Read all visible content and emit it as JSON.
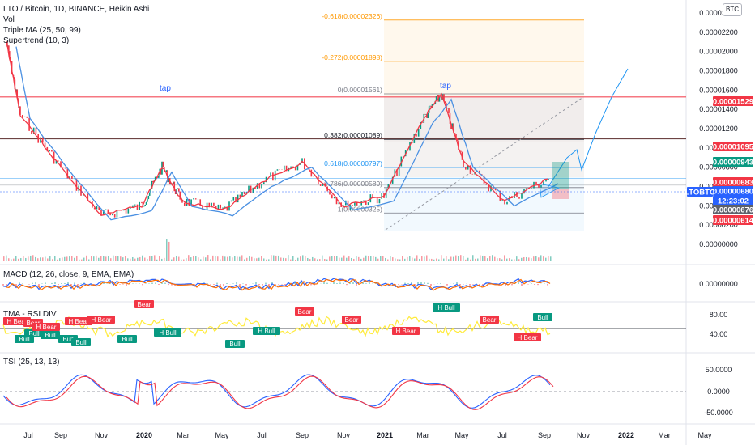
{
  "header": {
    "symbol_line": "LTO / Bitcoin, 1D, BINANCE, Heikin Ashi",
    "indicators": [
      "Vol",
      "Triple MA (25, 50, 99)",
      "Supertrend (10, 3)"
    ],
    "currency_button": "BTC"
  },
  "price_axis": {
    "ticks": [
      "0.00002400",
      "0.00002200",
      "0.00002000",
      "0.00001800",
      "0.00001600",
      "0.00001400",
      "0.00001200",
      "0.00001000",
      "0.00000800",
      "0.00000600",
      "0.00000400",
      "0.00000200",
      "0.00000000"
    ],
    "badges": [
      {
        "text": "0.00001529",
        "color": "#f23645"
      },
      {
        "text": "0.00001095",
        "color": "#f23645"
      },
      {
        "text": "0.00000943",
        "color": "#089981"
      },
      {
        "text": "0.00000683",
        "color": "#f23645"
      },
      {
        "text": "0.00000680",
        "color": "#2962ff"
      },
      {
        "text": "12:23:02",
        "color": "#2962ff"
      },
      {
        "text": "0.00000676",
        "color": "#5d606b"
      },
      {
        "text": "0.00000614",
        "color": "#f23645"
      }
    ],
    "symbol_badge": "LTOBTC"
  },
  "fib": {
    "levels": [
      {
        "label": "-0.618(0.00002326)",
        "color": "#ff9800"
      },
      {
        "label": "-0.272(0.00001898)",
        "color": "#ff9800"
      },
      {
        "label": "0(0.00001561)",
        "color": "#787b86"
      },
      {
        "label": "0.382(0.00001089)",
        "color": "#131722"
      },
      {
        "label": "0.618(0.00000797)",
        "color": "#2196f3"
      },
      {
        "label": "0.786(0.00000589)",
        "color": "#787b86"
      },
      {
        "label": "1(0.00000325)",
        "color": "#787b86"
      }
    ]
  },
  "annotations": {
    "tap1": "tap",
    "tap2": "tap"
  },
  "macd": {
    "title": "MACD (12, 26, close, 9, EMA, EMA)",
    "ticks": [
      "0.00000000"
    ]
  },
  "rsi": {
    "title": "TMA - RSI DIV",
    "ticks": [
      "80.00",
      "40.00"
    ],
    "signals": [
      {
        "t": "H Bear",
        "c": "#f23645"
      },
      {
        "t": "Bull",
        "c": "#089981"
      },
      {
        "t": "Bull",
        "c": "#089981"
      },
      {
        "t": "H Bear",
        "c": "#f23645"
      },
      {
        "t": "Bull",
        "c": "#089981"
      },
      {
        "t": "H Bear",
        "c": "#f23645"
      },
      {
        "t": "Bull",
        "c": "#089981"
      },
      {
        "t": "Bull",
        "c": "#089981"
      },
      {
        "t": "Bear",
        "c": "#f23645"
      },
      {
        "t": "H Bull",
        "c": "#089981"
      },
      {
        "t": "Bull",
        "c": "#089981"
      },
      {
        "t": "H Bull",
        "c": "#089981"
      },
      {
        "t": "Bear",
        "c": "#f23645"
      },
      {
        "t": "Bear",
        "c": "#f23645"
      },
      {
        "t": "H Bear",
        "c": "#f23645"
      },
      {
        "t": "H Bull",
        "c": "#089981"
      },
      {
        "t": "Bear",
        "c": "#f23645"
      },
      {
        "t": "H Bear",
        "c": "#f23645"
      },
      {
        "t": "Bull",
        "c": "#089981"
      },
      {
        "t": "Bear",
        "c": "#f23645"
      },
      {
        "t": "H Bear",
        "c": "#f23645"
      },
      {
        "t": "Bull",
        "c": "#089981"
      }
    ]
  },
  "tsi": {
    "title": "TSI (25, 13, 13)",
    "ticks": [
      "50.0000",
      "0.0000",
      "-50.0000"
    ]
  },
  "x_axis": [
    "Jul",
    "Sep",
    "Nov",
    "2020",
    "Mar",
    "May",
    "Jul",
    "Sep",
    "Nov",
    "2021",
    "Mar",
    "May",
    "Jul",
    "Sep",
    "Nov",
    "2022",
    "Mar",
    "May"
  ],
  "chart_data": {
    "type": "line",
    "title": "LTO / Bitcoin, 1D, BINANCE, Heikin Ashi",
    "xlabel": "",
    "ylabel": "",
    "ylim": [
      0,
      2.4e-05
    ],
    "x": [
      "2019-06",
      "2019-07",
      "2019-09",
      "2019-11",
      "2020-01",
      "2020-02",
      "2020-03",
      "2020-05",
      "2020-07",
      "2020-09",
      "2020-11",
      "2021-01",
      "2021-03",
      "2021-04",
      "2021-05",
      "2021-07",
      "2021-09"
    ],
    "series": [
      {
        "name": "LTOBTC",
        "values": [
          2.1e-05,
          1.35e-05,
          8e-06,
          3e-06,
          4e-06,
          8e-06,
          4.5e-06,
          3.5e-06,
          6.5e-06,
          8.5e-06,
          4e-06,
          5e-06,
          1.3e-05,
          1.55e-05,
          8.5e-06,
          4.5e-06,
          6.8e-06
        ]
      }
    ],
    "last_price": 6.8e-06,
    "horizontal_lines": [
      1.529e-05,
      1.095e-05,
      6.83e-06,
      6.14e-06
    ],
    "fib_levels": [
      2.326e-05,
      1.898e-05,
      1.561e-05,
      1.089e-05,
      7.97e-06,
      5.89e-06,
      3.25e-06
    ]
  }
}
